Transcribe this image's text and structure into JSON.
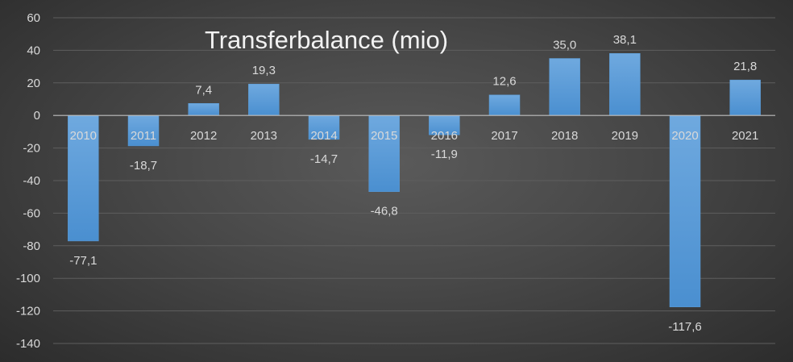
{
  "chart_data": {
    "type": "bar",
    "title": "Transferbalance (mio)",
    "categories": [
      "2010",
      "2011",
      "2012",
      "2013",
      "2014",
      "2015",
      "2016",
      "2017",
      "2018",
      "2019",
      "2020",
      "2021"
    ],
    "values": [
      -77.1,
      -18.7,
      7.4,
      19.3,
      -14.7,
      -46.8,
      -11.9,
      12.6,
      35.0,
      38.1,
      -117.6,
      21.8
    ],
    "value_labels": [
      "-77,1",
      "-18,7",
      "7,4",
      "19,3",
      "-14,7",
      "-46,8",
      "-11,9",
      "12,6",
      "35,0",
      "38,1",
      "-117,6",
      "21,8"
    ],
    "ylim": [
      -140,
      60
    ],
    "yticks": [
      60,
      40,
      20,
      0,
      -20,
      -40,
      -60,
      -80,
      -100,
      -120,
      -140
    ],
    "grid": true,
    "legend": "none",
    "colors": {
      "bar": "#5b9bd5",
      "bar_light": "#7fb3e3",
      "background": "#404040"
    }
  }
}
